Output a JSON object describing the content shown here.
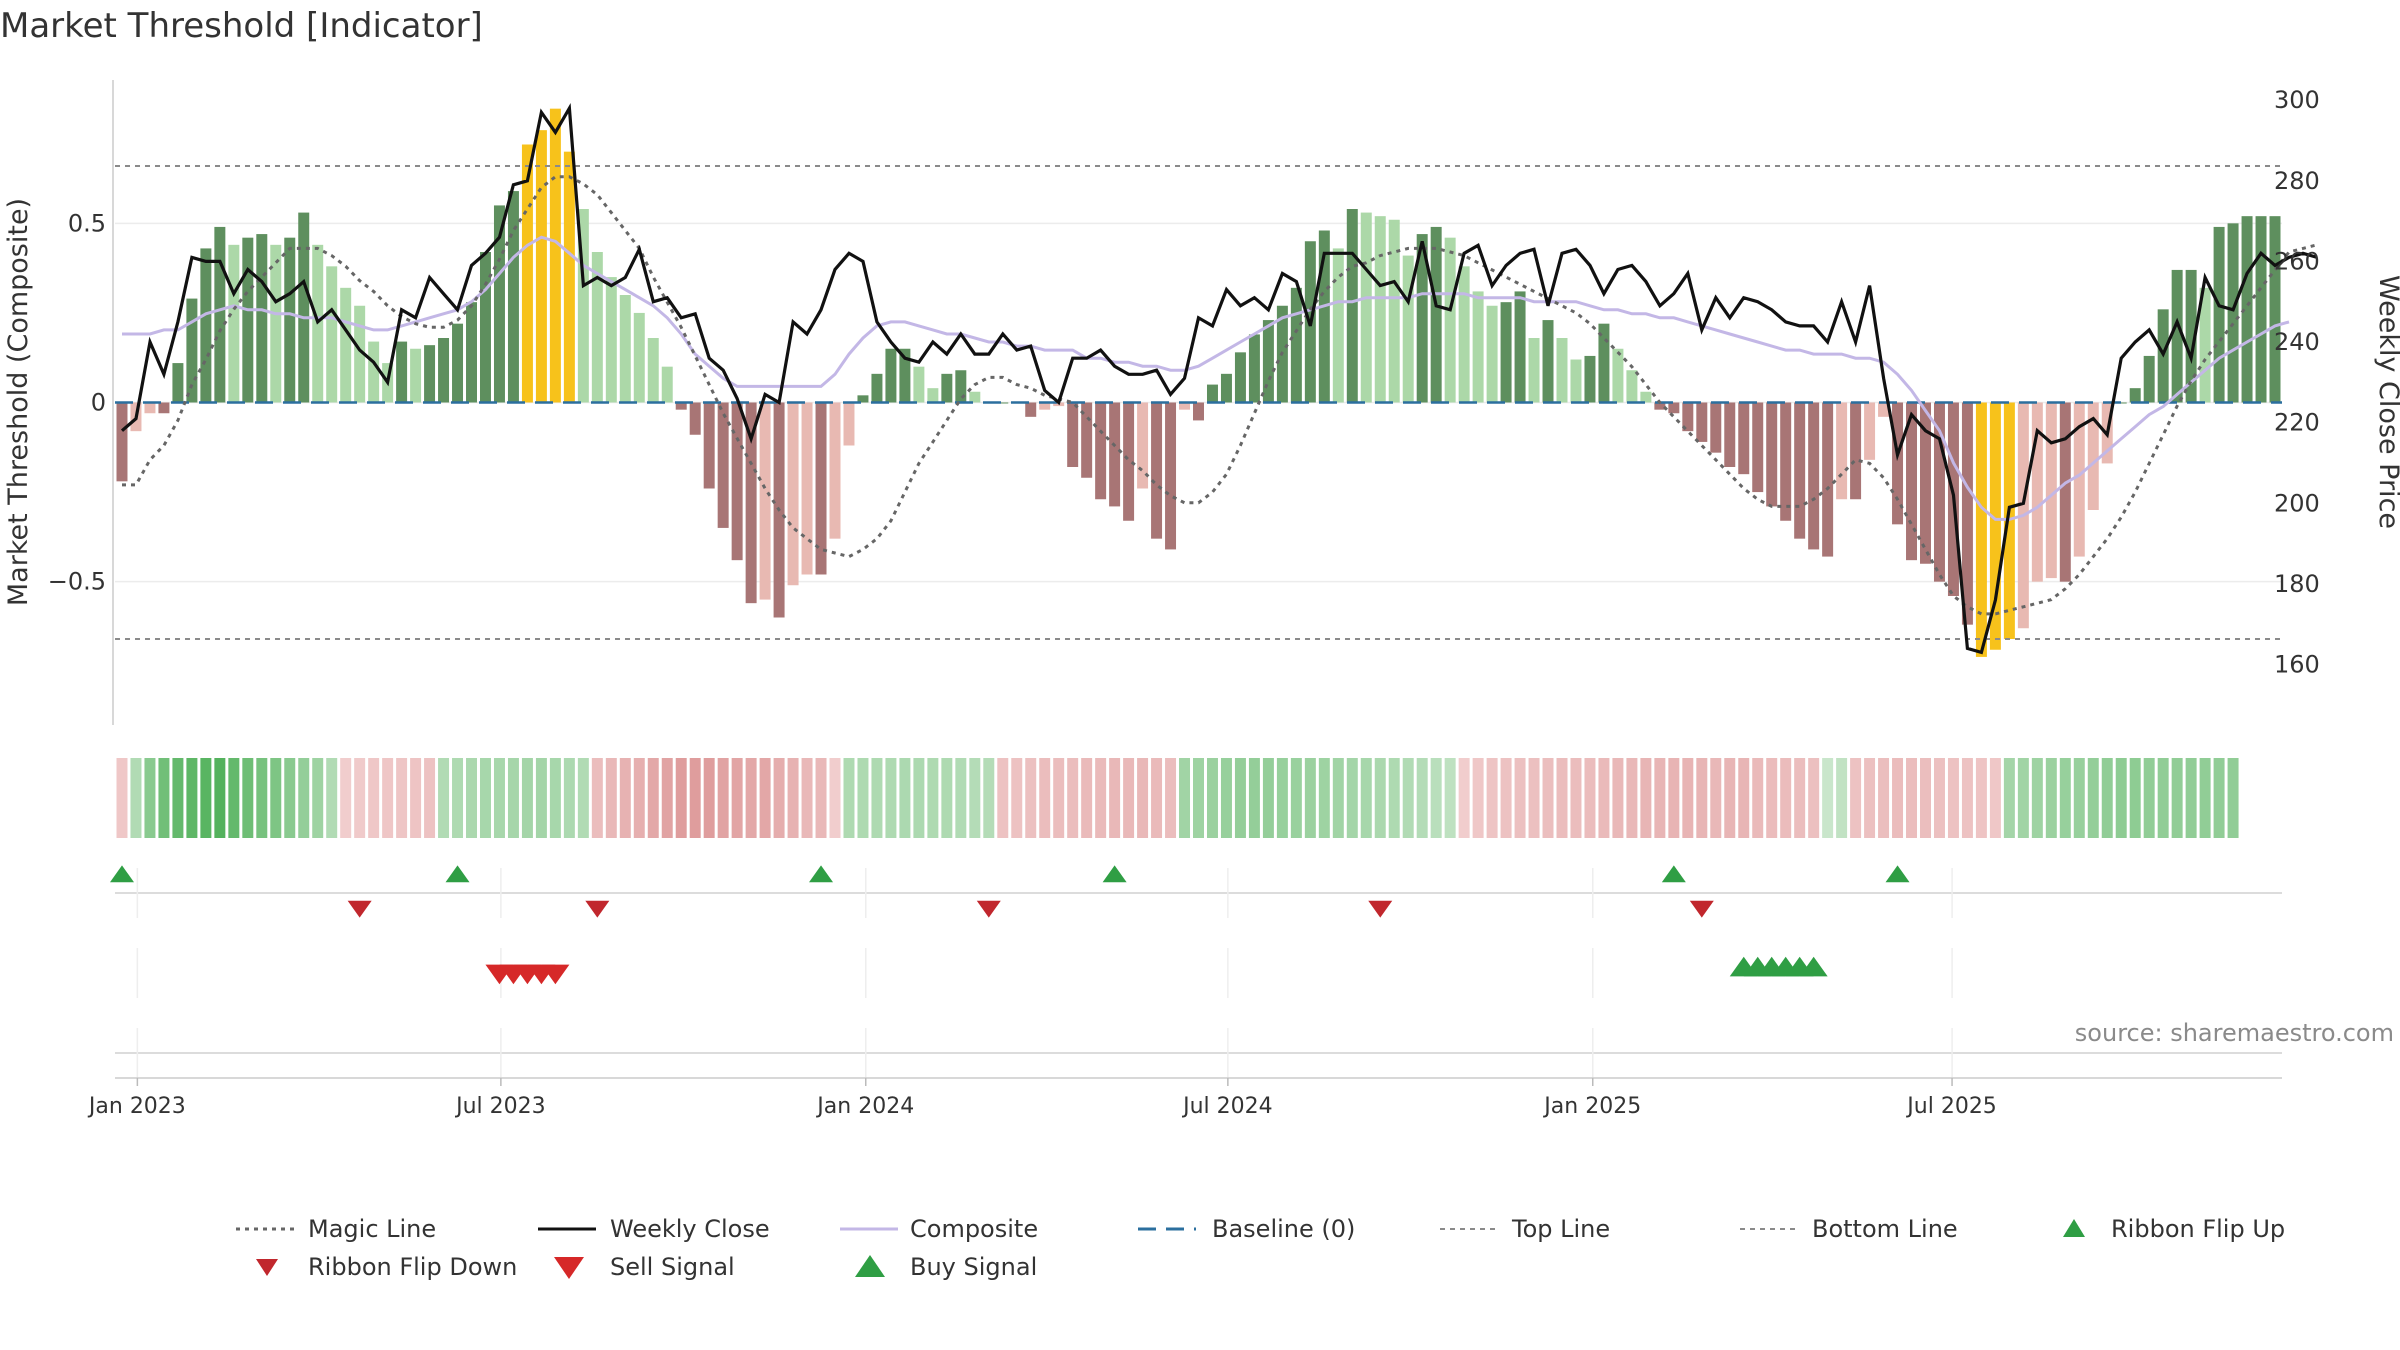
{
  "title": "Market Threshold [Indicator]",
  "source": "source: sharemaestro.com",
  "colors": {
    "weekly_close": "#111111",
    "composite": "#c3b7e6",
    "magic_line": "#666666",
    "baseline": "#2b6f9e",
    "threshold_lines": "#8a8a8a",
    "bull_strong": "#5e8f5e",
    "bull_weak": "#acd8a8",
    "bear_strong": "#a87575",
    "bear_weak": "#e8b9b2",
    "extreme": "#f7c21b",
    "buy": "#2f9e44",
    "sell": "#d62828",
    "ribbon_flip_down": "#c1272d",
    "ribbon_flip_up": "#2f9e44"
  },
  "chart_data": {
    "type": "bar+line",
    "title": "Market Threshold [Indicator]",
    "left_axis": {
      "label": "Market Threshold (Composite)",
      "ylim": [
        -0.9,
        0.9
      ],
      "ticks": [
        0.5,
        0,
        -0.5
      ],
      "tick_labels": [
        "0.5",
        "0",
        "−0.5"
      ]
    },
    "right_axis": {
      "label": "Weekly Close Price",
      "ylim": [
        145,
        305
      ],
      "ticks": [
        300,
        280,
        260,
        240,
        220,
        200,
        180,
        160
      ],
      "tick_labels": [
        "300",
        "280",
        "260",
        "240",
        "220",
        "200",
        "180",
        "160"
      ]
    },
    "date_range_weeks": 141,
    "date_ticks": [
      {
        "week": 1.6,
        "label": "Jan 2023"
      },
      {
        "week": 27.6,
        "label": "Jul 2023"
      },
      {
        "week": 53.7,
        "label": "Jan 2024"
      },
      {
        "week": 79.6,
        "label": "Jul 2024"
      },
      {
        "week": 105.7,
        "label": "Jan 2025"
      },
      {
        "week": 131.4,
        "label": "Jul 2025"
      }
    ],
    "top_line": 0.66,
    "bottom_line": -0.66,
    "baseline": 0,
    "composite": [
      -0.22,
      -0.08,
      -0.03,
      -0.03,
      0.11,
      0.29,
      0.43,
      0.49,
      0.44,
      0.46,
      0.47,
      0.44,
      0.46,
      0.53,
      0.44,
      0.38,
      0.32,
      0.27,
      0.17,
      0.11,
      0.17,
      0.15,
      0.16,
      0.18,
      0.22,
      0.28,
      0.42,
      0.55,
      0.59,
      0.72,
      0.76,
      0.82,
      0.7,
      0.54,
      0.42,
      0.35,
      0.3,
      0.25,
      0.18,
      0.1,
      -0.02,
      -0.09,
      -0.24,
      -0.35,
      -0.44,
      -0.56,
      -0.55,
      -0.6,
      -0.51,
      -0.48,
      -0.48,
      -0.38,
      -0.12,
      0.02,
      0.08,
      0.15,
      0.15,
      0.1,
      0.04,
      0.08,
      0.09,
      0.03,
      0,
      0,
      0,
      -0.04,
      -0.02,
      -0.01,
      -0.18,
      -0.21,
      -0.27,
      -0.29,
      -0.33,
      -0.24,
      -0.38,
      -0.41,
      -0.02,
      -0.05,
      0.05,
      0.08,
      0.14,
      0.19,
      0.23,
      0.27,
      0.32,
      0.45,
      0.48,
      0.43,
      0.54,
      0.53,
      0.52,
      0.51,
      0.41,
      0.47,
      0.49,
      0.46,
      0.38,
      0.31,
      0.27,
      0.28,
      0.31,
      0.18,
      0.23,
      0.18,
      0.12,
      0.13,
      0.22,
      0.15,
      0.09,
      0.03,
      -0.02,
      -0.03,
      -0.08,
      -0.11,
      -0.14,
      -0.18,
      -0.2,
      -0.25,
      -0.29,
      -0.33,
      -0.38,
      -0.41,
      -0.43,
      -0.27,
      -0.27,
      -0.16,
      -0.04,
      -0.34,
      -0.44,
      -0.45,
      -0.5,
      -0.54,
      -0.62,
      -0.71,
      -0.69,
      -0.66,
      -0.63,
      -0.5,
      -0.49,
      -0.5,
      -0.43,
      -0.3,
      -0.17,
      0,
      0.04,
      0.13,
      0.26,
      0.37,
      0.37,
      0.32,
      0.49,
      0.5,
      0.52,
      0.52,
      0.52
    ],
    "weekly_close": [
      218,
      221,
      240,
      232,
      245,
      261,
      260,
      260,
      252,
      258,
      255,
      250,
      252,
      255,
      245,
      248,
      243,
      238,
      235,
      230,
      248,
      246,
      256,
      252,
      248,
      259,
      262,
      266,
      279,
      280,
      297,
      292,
      298,
      254,
      256,
      254,
      256,
      263,
      250,
      251,
      246,
      247,
      236,
      233,
      226,
      216,
      227,
      225,
      245,
      242,
      248,
      258,
      262,
      260,
      245,
      240,
      236,
      235,
      240,
      237,
      242,
      237,
      237,
      242,
      238,
      239,
      228,
      225,
      236,
      236,
      238,
      234,
      232,
      232,
      233,
      227,
      231,
      246,
      244,
      253,
      249,
      251,
      248,
      257,
      255,
      244,
      262,
      262,
      262,
      258,
      254,
      255,
      250,
      265,
      249,
      248,
      262,
      264,
      254,
      259,
      262,
      263,
      249,
      262,
      263,
      259,
      252,
      258,
      259,
      255,
      249,
      252,
      257,
      243,
      251,
      246,
      251,
      250,
      248,
      245,
      244,
      244,
      240,
      250,
      240,
      254,
      231,
      212,
      222,
      218,
      216,
      202,
      164,
      163,
      176,
      199,
      200,
      218,
      215,
      216,
      219,
      221,
      217,
      236,
      240,
      243,
      237,
      245,
      236,
      256,
      249,
      248,
      257,
      262,
      259,
      261,
      262,
      261
    ],
    "composite_smooth": [
      242,
      242,
      242,
      243,
      243,
      245,
      247,
      248,
      249,
      248,
      248,
      247,
      247,
      246,
      246,
      246,
      245,
      244,
      243,
      243,
      244,
      245,
      246,
      247,
      248,
      250,
      253,
      257,
      261,
      264,
      266,
      265,
      262,
      259,
      257,
      255,
      253,
      251,
      249,
      246,
      242,
      237,
      234,
      231,
      229,
      229,
      229,
      229,
      229,
      229,
      229,
      232,
      237,
      241,
      244,
      245,
      245,
      244,
      243,
      242,
      242,
      241,
      240,
      240,
      239,
      239,
      238,
      238,
      238,
      236,
      236,
      235,
      235,
      234,
      234,
      233,
      233,
      234,
      236,
      238,
      240,
      242,
      244,
      246,
      247,
      248,
      249,
      250,
      250,
      251,
      251,
      251,
      251,
      252,
      252,
      252,
      252,
      251,
      251,
      251,
      251,
      250,
      250,
      250,
      250,
      249,
      248,
      248,
      247,
      247,
      246,
      246,
      245,
      244,
      243,
      242,
      241,
      240,
      239,
      238,
      238,
      237,
      237,
      237,
      236,
      236,
      235,
      232,
      228,
      223,
      218,
      210,
      204,
      199,
      196,
      196,
      197,
      199,
      202,
      205,
      207,
      210,
      213,
      216,
      219,
      222,
      224,
      227,
      230,
      233,
      236,
      238,
      240,
      242,
      244,
      245
    ],
    "magic_line": [
      -0.23,
      -0.23,
      -0.16,
      -0.12,
      -0.05,
      0.05,
      0.12,
      0.2,
      0.26,
      0.31,
      0.35,
      0.39,
      0.43,
      0.43,
      0.43,
      0.41,
      0.38,
      0.34,
      0.31,
      0.27,
      0.24,
      0.22,
      0.21,
      0.21,
      0.23,
      0.27,
      0.33,
      0.4,
      0.48,
      0.54,
      0.6,
      0.63,
      0.63,
      0.61,
      0.58,
      0.53,
      0.48,
      0.43,
      0.35,
      0.28,
      0.21,
      0.13,
      0.05,
      -0.03,
      -0.1,
      -0.17,
      -0.24,
      -0.3,
      -0.35,
      -0.38,
      -0.41,
      -0.42,
      -0.43,
      -0.41,
      -0.38,
      -0.33,
      -0.25,
      -0.17,
      -0.11,
      -0.05,
      0.01,
      0.05,
      0.07,
      0.07,
      0.05,
      0.04,
      0.02,
      0.01,
      0,
      -0.04,
      -0.08,
      -0.12,
      -0.16,
      -0.19,
      -0.23,
      -0.26,
      -0.28,
      -0.28,
      -0.25,
      -0.2,
      -0.12,
      -0.03,
      0.06,
      0.14,
      0.2,
      0.26,
      0.31,
      0.35,
      0.38,
      0.39,
      0.41,
      0.42,
      0.43,
      0.43,
      0.43,
      0.42,
      0.41,
      0.39,
      0.37,
      0.35,
      0.33,
      0.31,
      0.29,
      0.27,
      0.25,
      0.22,
      0.18,
      0.14,
      0.1,
      0.05,
      0,
      -0.04,
      -0.08,
      -0.12,
      -0.16,
      -0.2,
      -0.24,
      -0.27,
      -0.29,
      -0.29,
      -0.29,
      -0.27,
      -0.24,
      -0.2,
      -0.16,
      -0.17,
      -0.21,
      -0.27,
      -0.34,
      -0.41,
      -0.48,
      -0.54,
      -0.57,
      -0.59,
      -0.59,
      -0.58,
      -0.57,
      -0.56,
      -0.55,
      -0.52,
      -0.48,
      -0.43,
      -0.38,
      -0.32,
      -0.25,
      -0.17,
      -0.09,
      -0.01,
      0.06,
      0.12,
      0.17,
      0.22,
      0.27,
      0.32,
      0.37,
      0.42,
      0.43,
      0.44
    ],
    "ribbon": [
      -0.15,
      0.3,
      0.55,
      0.7,
      0.78,
      0.82,
      0.85,
      0.88,
      0.78,
      0.72,
      0.66,
      0.62,
      0.55,
      0.48,
      0.42,
      0.3,
      -0.1,
      -0.12,
      -0.15,
      -0.16,
      -0.17,
      -0.18,
      -0.2,
      0.3,
      0.32,
      0.34,
      0.36,
      0.36,
      0.37,
      0.38,
      0.38,
      0.36,
      0.33,
      0.3,
      -0.25,
      -0.3,
      -0.35,
      -0.38,
      -0.45,
      -0.5,
      -0.55,
      -0.55,
      -0.55,
      -0.5,
      -0.48,
      -0.45,
      -0.46,
      -0.4,
      -0.35,
      -0.3,
      -0.3,
      -0.1,
      0.32,
      0.32,
      0.32,
      0.32,
      0.33,
      0.33,
      0.32,
      0.32,
      0.3,
      0.28,
      0.28,
      -0.2,
      -0.2,
      -0.22,
      -0.25,
      -0.25,
      -0.25,
      -0.28,
      -0.28,
      -0.3,
      -0.3,
      -0.3,
      -0.28,
      -0.25,
      0.4,
      0.42,
      0.44,
      0.46,
      0.48,
      0.48,
      0.48,
      0.46,
      0.45,
      0.44,
      0.42,
      0.4,
      0.38,
      0.36,
      0.34,
      0.32,
      0.3,
      0.28,
      0.25,
      0.22,
      -0.1,
      -0.15,
      -0.18,
      -0.2,
      -0.22,
      -0.22,
      -0.24,
      -0.25,
      -0.25,
      -0.26,
      -0.28,
      -0.3,
      -0.3,
      -0.32,
      -0.32,
      -0.33,
      -0.33,
      -0.32,
      -0.3,
      -0.32,
      -0.32,
      -0.28,
      -0.26,
      -0.26,
      -0.25,
      -0.22,
      0.15,
      0.2,
      -0.2,
      -0.22,
      -0.24,
      -0.26,
      -0.25,
      -0.24,
      -0.22,
      -0.2,
      -0.2,
      -0.18,
      -0.15,
      0.38,
      0.4,
      0.42,
      0.44,
      0.46,
      0.46,
      0.48,
      0.5,
      0.52,
      0.52,
      0.5,
      0.5,
      0.5,
      0.5,
      0.5,
      0.5,
      0.5
    ],
    "ribbon_flip_up_weeks": [
      0.5,
      24.5,
      50.5,
      71.5,
      111.5,
      127.5
    ],
    "ribbon_flip_down_weeks": [
      17.5,
      34.5,
      62.5,
      90.5,
      113.5
    ],
    "sell_signal_weeks": [
      27.5,
      28.5,
      29.5,
      30.5,
      31.5
    ],
    "buy_signal_weeks": [
      116.5,
      117.5,
      118.5,
      119.5,
      120.5,
      121.5
    ]
  },
  "legend": [
    {
      "key": "magic",
      "label": "Magic Line"
    },
    {
      "key": "close",
      "label": "Weekly Close"
    },
    {
      "key": "composite",
      "label": "Composite"
    },
    {
      "key": "baseline",
      "label": "Baseline (0)"
    },
    {
      "key": "top",
      "label": "Top Line"
    },
    {
      "key": "bottom",
      "label": "Bottom Line"
    },
    {
      "key": "flip_up",
      "label": "Ribbon Flip Up"
    },
    {
      "key": "flip_down",
      "label": "Ribbon Flip Down"
    },
    {
      "key": "sell",
      "label": "Sell Signal"
    },
    {
      "key": "buy",
      "label": "Buy Signal"
    }
  ]
}
